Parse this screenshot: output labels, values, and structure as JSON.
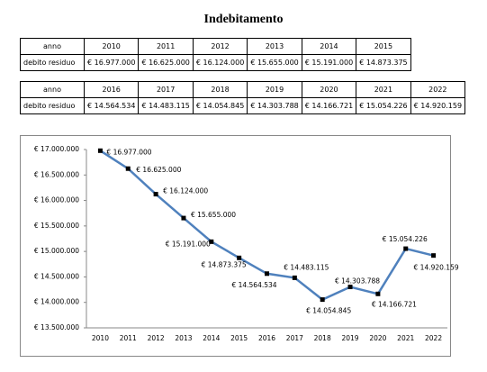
{
  "header": {
    "title": "Indebitamento"
  },
  "tables": [
    {
      "rows": [
        [
          "anno",
          "2010",
          "2011",
          "2012",
          "2013",
          "2014",
          "2015"
        ],
        [
          "debito residuo",
          "€  16.977.000",
          "€  16.625.000",
          "€  16.124.000",
          "€  15.655.000",
          "€  15.191.000",
          "€  14.873.375"
        ]
      ]
    },
    {
      "rows": [
        [
          "anno",
          "2016",
          "2017",
          "2018",
          "2019",
          "2020",
          "2021",
          "2022"
        ],
        [
          "debito residuo",
          "€  14.564.534",
          "€  14.483.115",
          "€  14.054.845",
          "€  14.303.788",
          "€  14.166.721",
          "€  15.054.226",
          "€  14.920.159"
        ]
      ]
    }
  ],
  "chart_data": {
    "type": "line",
    "categories": [
      "2010",
      "2011",
      "2012",
      "2013",
      "2014",
      "2015",
      "2016",
      "2017",
      "2018",
      "2019",
      "2020",
      "2021",
      "2022"
    ],
    "values": [
      16977000,
      16625000,
      16124000,
      15655000,
      15191000,
      14873375,
      14564534,
      14483115,
      14054845,
      14303788,
      14166721,
      15054226,
      14920159
    ],
    "value_labels": [
      "€ 16.977.000",
      "€ 16.625.000",
      "€ 16.124.000",
      "€ 15.655.000",
      "€ 15.191.000",
      "€ 14.873.375",
      "€ 14.564.534",
      "€ 14.483.115",
      "€ 14.054.845",
      "€ 14.303.788",
      "€ 14.166.721",
      "€ 15.054.226",
      "€ 14.920.159"
    ],
    "color": "#4f81bd",
    "marker_color": "#000000",
    "grid": false,
    "ylim": [
      13500000,
      17000000
    ],
    "yticks": [
      {
        "value": 13500000,
        "label": "€ 13.500.000"
      },
      {
        "value": 14000000,
        "label": "€ 14.000.000"
      },
      {
        "value": 14500000,
        "label": "€ 14.500.000"
      },
      {
        "value": 15000000,
        "label": "€ 15.000.000"
      },
      {
        "value": 15500000,
        "label": "€ 15.500.000"
      },
      {
        "value": 16000000,
        "label": "€ 16.000.000"
      },
      {
        "value": 16500000,
        "label": "€ 16.500.000"
      },
      {
        "value": 17000000,
        "label": "€ 17.000.000"
      }
    ]
  }
}
